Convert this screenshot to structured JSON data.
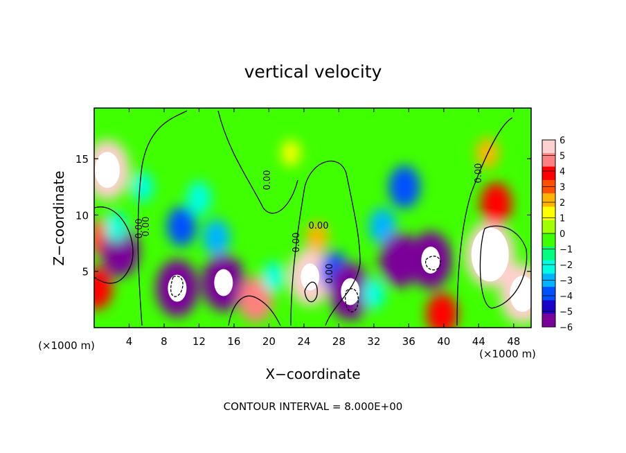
{
  "chart_data": {
    "type": "heatmap",
    "title": "vertical velocity",
    "xlabel": "X−coordinate",
    "ylabel": "Z−coordinate",
    "x_unit_left": "(×1000 m)",
    "x_unit_right": "(×1000 m)",
    "footer": "CONTOUR INTERVAL = 8.000E+00",
    "xlim": [
      0,
      50
    ],
    "ylim": [
      0,
      19.5
    ],
    "x_ticks": [
      4,
      8,
      12,
      16,
      20,
      24,
      28,
      32,
      36,
      40,
      44,
      48
    ],
    "x_tick_labels": [
      "4",
      "8",
      "12",
      "16",
      "20",
      "24",
      "28",
      "32",
      "36",
      "40",
      "44",
      "48"
    ],
    "y_ticks": [
      5,
      10,
      15
    ],
    "y_tick_labels": [
      "5",
      "10",
      "15"
    ],
    "colorbar": {
      "min": -6,
      "max": 6,
      "tick_values": [
        6,
        5,
        4,
        3,
        2,
        1,
        0,
        -1,
        -2,
        -3,
        -4,
        -5,
        -6
      ],
      "tick_labels": [
        "6",
        "5",
        "4",
        "3",
        "2",
        "1",
        "0",
        "−1",
        "−2",
        "−3",
        "−4",
        "−5",
        "−6"
      ],
      "colors": [
        "#7a0099",
        "#1a00c8",
        "#0050ff",
        "#00b4ff",
        "#00ffe0",
        "#00ff80",
        "#3cff00",
        "#a0ff00",
        "#ffff00",
        "#ffb400",
        "#ff5000",
        "#ff0000",
        "#ff8080",
        "#ffd0d0"
      ]
    },
    "contour_labels": [
      "0.00",
      "0.00",
      "0.00",
      "0.00",
      "0.00",
      "0.00",
      "0.00"
    ],
    "features": [
      {
        "x": 1.5,
        "z": 14.0,
        "value": 7.0
      },
      {
        "x": 0.8,
        "z": 8.0,
        "value": 3.0
      },
      {
        "x": 0.3,
        "z": 3.5,
        "value": 4.0
      },
      {
        "x": 3.0,
        "z": 6.8,
        "value": -5.5
      },
      {
        "x": 2.5,
        "z": 9.0,
        "value": -2.0
      },
      {
        "x": 5.5,
        "z": 12.5,
        "value": -2.0
      },
      {
        "x": 9.5,
        "z": 3.5,
        "value": -6.5
      },
      {
        "x": 10.0,
        "z": 9.0,
        "value": -3.5
      },
      {
        "x": 12.0,
        "z": 11.5,
        "value": -2.5
      },
      {
        "x": 14.8,
        "z": 4.0,
        "value": -6.5
      },
      {
        "x": 14.0,
        "z": 8.0,
        "value": -3.0
      },
      {
        "x": 18.5,
        "z": 2.5,
        "value": 4.5
      },
      {
        "x": 20.5,
        "z": 4.5,
        "value": -2.0
      },
      {
        "x": 24.7,
        "z": 4.5,
        "value": 6.5
      },
      {
        "x": 25.5,
        "z": 8.0,
        "value": 2.0
      },
      {
        "x": 27.5,
        "z": 5.0,
        "value": -3.5
      },
      {
        "x": 29.3,
        "z": 3.2,
        "value": -6.5
      },
      {
        "x": 32.0,
        "z": 3.0,
        "value": -2.0
      },
      {
        "x": 35.5,
        "z": 12.5,
        "value": -4.0
      },
      {
        "x": 33.0,
        "z": 9.0,
        "value": -3.0
      },
      {
        "x": 35.0,
        "z": 6.0,
        "value": -6.0
      },
      {
        "x": 38.5,
        "z": 6.0,
        "value": -6.5
      },
      {
        "x": 39.8,
        "z": 1.2,
        "value": 4.0
      },
      {
        "x": 45.3,
        "z": 6.5,
        "value": 8.0
      },
      {
        "x": 46.0,
        "z": 11.0,
        "value": 4.0
      },
      {
        "x": 49.0,
        "z": 3.0,
        "value": 7.0
      },
      {
        "x": 45.0,
        "z": 15.5,
        "value": 2.0
      },
      {
        "x": 22.5,
        "z": 15.5,
        "value": 1.2
      }
    ]
  }
}
